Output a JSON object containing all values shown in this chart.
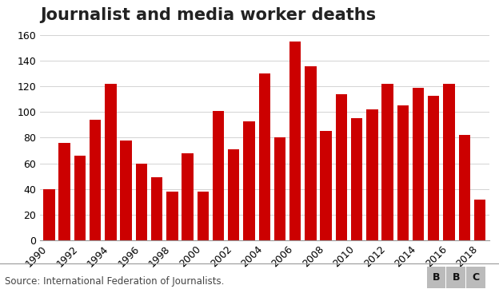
{
  "title": "Journalist and media worker deaths",
  "years": [
    1990,
    1991,
    1992,
    1993,
    1994,
    1995,
    1996,
    1997,
    1998,
    1999,
    2000,
    2001,
    2002,
    2003,
    2004,
    2005,
    2006,
    2007,
    2008,
    2009,
    2010,
    2011,
    2012,
    2013,
    2014,
    2015,
    2016,
    2017,
    2018
  ],
  "values": [
    40,
    76,
    66,
    94,
    122,
    78,
    60,
    49,
    38,
    68,
    38,
    101,
    71,
    93,
    130,
    80,
    155,
    136,
    85,
    114,
    95,
    102,
    122,
    105,
    119,
    113,
    122,
    82,
    32
  ],
  "bar_color": "#cc0000",
  "background_color": "#ffffff",
  "ylim": [
    0,
    160
  ],
  "yticks": [
    0,
    20,
    40,
    60,
    80,
    100,
    120,
    140,
    160
  ],
  "source_text": "Source: International Federation of Journalists.",
  "bbc_text": "BBC",
  "title_fontsize": 15,
  "axis_fontsize": 9,
  "source_fontsize": 8.5
}
